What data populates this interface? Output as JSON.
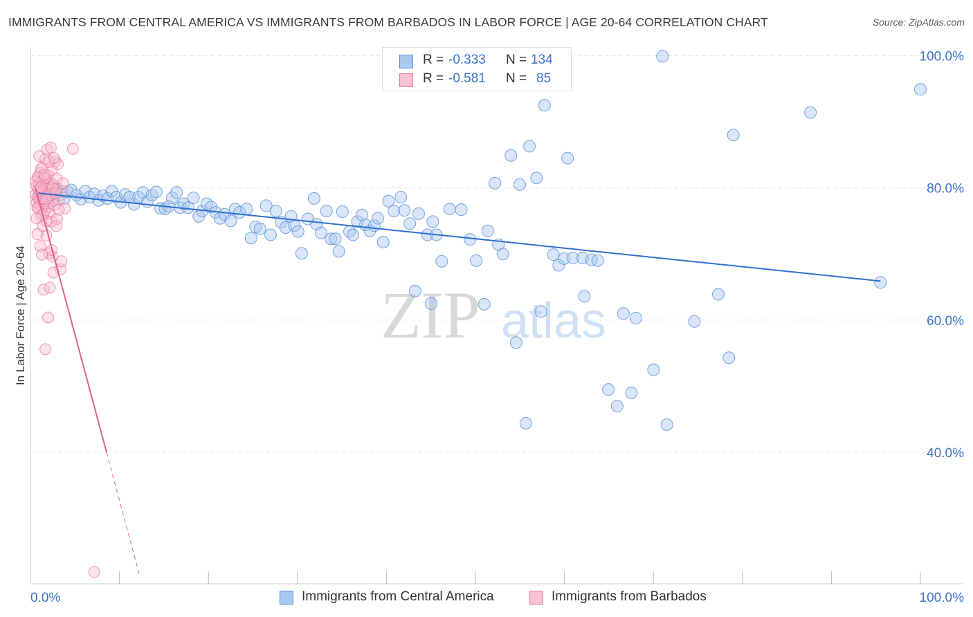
{
  "header": {
    "title": "IMMIGRANTS FROM CENTRAL AMERICA VS IMMIGRANTS FROM BARBADOS IN LABOR FORCE | AGE 20-64 CORRELATION CHART",
    "source": "Source: ZipAtlas.com"
  },
  "legend_top": {
    "rows": [
      {
        "r_label": "R =",
        "r_value": "-0.333",
        "n_label": "N =",
        "n_value": "134"
      },
      {
        "r_label": "R =",
        "r_value": "-0.581",
        "n_label": "N =",
        "n_value": "85"
      }
    ]
  },
  "legend_bottom": {
    "items": [
      {
        "label": "Immigrants from Central America"
      },
      {
        "label": "Immigrants from Barbados"
      }
    ]
  },
  "watermark": {
    "zip": "ZIP",
    "atlas": "atlas"
  },
  "colors": {
    "blue_fill": "#a8c8f0",
    "blue_stroke": "#5b8fd6",
    "blue_line": "#2f6fd0",
    "pink_fill": "#f8b8cc",
    "pink_stroke": "#e8789a",
    "pink_line": "#e0608a",
    "tick_text": "#3b73c8",
    "grid": "#e6e6e6"
  },
  "chart_data": {
    "type": "scatter",
    "title": "IMMIGRANTS FROM CENTRAL AMERICA VS IMMIGRANTS FROM BARBADOS IN LABOR FORCE | AGE 20-64 CORRELATION CHART",
    "xlabel": "",
    "ylabel": "In Labor Force | Age 20-64",
    "xlim": [
      0,
      100
    ],
    "ylim": [
      20,
      102
    ],
    "x_ticks": [
      "0.0%",
      "100.0%"
    ],
    "y_ticks": [
      {
        "value": 100,
        "label": "100.0%"
      },
      {
        "value": 80,
        "label": "80.0%"
      },
      {
        "value": 60,
        "label": "60.0%"
      },
      {
        "value": 40,
        "label": "40.0%"
      }
    ],
    "grid": true,
    "legend_position": "bottom",
    "series": [
      {
        "name": "Immigrants from Central America",
        "r": -0.333,
        "n": 134,
        "trend": {
          "x": [
            0.5,
            95.5
          ],
          "y": [
            79.2,
            65.9
          ]
        },
        "points": [
          [
            0.6,
            78.8
          ],
          [
            1.0,
            79.2
          ],
          [
            1.4,
            78.6
          ],
          [
            1.8,
            79.6
          ],
          [
            2.2,
            78.2
          ],
          [
            2.6,
            79.9
          ],
          [
            3.0,
            79.0
          ],
          [
            3.4,
            78.4
          ],
          [
            3.8,
            79.4
          ],
          [
            4.2,
            79.7
          ],
          [
            4.8,
            78.9
          ],
          [
            5.3,
            78.3
          ],
          [
            5.8,
            79.5
          ],
          [
            6.3,
            78.6
          ],
          [
            6.8,
            79.1
          ],
          [
            7.3,
            78.1
          ],
          [
            7.8,
            78.8
          ],
          [
            8.3,
            78.4
          ],
          [
            8.8,
            79.5
          ],
          [
            9.3,
            78.6
          ],
          [
            9.8,
            77.8
          ],
          [
            10.3,
            79.0
          ],
          [
            10.8,
            78.6
          ],
          [
            11.3,
            77.5
          ],
          [
            11.8,
            78.6
          ],
          [
            12.3,
            79.3
          ],
          [
            12.8,
            77.9
          ],
          [
            13.3,
            78.9
          ],
          [
            13.8,
            79.4
          ],
          [
            14.3,
            76.9
          ],
          [
            14.8,
            76.8
          ],
          [
            15.2,
            77.2
          ],
          [
            15.6,
            78.5
          ],
          [
            16.1,
            79.3
          ],
          [
            16.5,
            77.0
          ],
          [
            16.9,
            77.6
          ],
          [
            17.4,
            77.0
          ],
          [
            18.0,
            78.5
          ],
          [
            18.6,
            75.7
          ],
          [
            19.0,
            76.5
          ],
          [
            19.5,
            77.6
          ],
          [
            20.0,
            77.1
          ],
          [
            20.5,
            76.3
          ],
          [
            21.0,
            75.4
          ],
          [
            21.5,
            76.0
          ],
          [
            22.2,
            75.0
          ],
          [
            22.7,
            76.8
          ],
          [
            23.2,
            76.3
          ],
          [
            24.0,
            76.8
          ],
          [
            24.5,
            72.4
          ],
          [
            25.0,
            74.1
          ],
          [
            25.5,
            73.8
          ],
          [
            26.2,
            77.3
          ],
          [
            26.7,
            72.9
          ],
          [
            27.3,
            76.5
          ],
          [
            27.9,
            74.8
          ],
          [
            28.4,
            74.0
          ],
          [
            29.0,
            75.7
          ],
          [
            29.4,
            74.3
          ],
          [
            29.8,
            73.4
          ],
          [
            30.2,
            70.1
          ],
          [
            30.9,
            75.3
          ],
          [
            31.6,
            78.4
          ],
          [
            31.9,
            74.5
          ],
          [
            32.4,
            73.2
          ],
          [
            33.0,
            76.5
          ],
          [
            33.5,
            72.3
          ],
          [
            34.0,
            72.3
          ],
          [
            34.4,
            70.4
          ],
          [
            34.8,
            76.4
          ],
          [
            35.6,
            73.4
          ],
          [
            36.0,
            72.9
          ],
          [
            36.5,
            74.9
          ],
          [
            37.0,
            75.9
          ],
          [
            37.4,
            74.4
          ],
          [
            37.9,
            73.5
          ],
          [
            38.4,
            74.3
          ],
          [
            38.8,
            75.4
          ],
          [
            39.4,
            71.8
          ],
          [
            40.0,
            78.0
          ],
          [
            40.6,
            76.5
          ],
          [
            41.4,
            78.6
          ],
          [
            41.8,
            76.6
          ],
          [
            42.4,
            74.6
          ],
          [
            43.0,
            64.4
          ],
          [
            43.4,
            76.1
          ],
          [
            44.4,
            72.9
          ],
          [
            44.8,
            62.5
          ],
          [
            45.0,
            74.9
          ],
          [
            45.4,
            72.9
          ],
          [
            46.0,
            68.9
          ],
          [
            46.9,
            76.8
          ],
          [
            48.2,
            76.7
          ],
          [
            49.2,
            72.2
          ],
          [
            49.9,
            69.0
          ],
          [
            50.8,
            62.4
          ],
          [
            51.2,
            73.5
          ],
          [
            52.0,
            80.7
          ],
          [
            52.4,
            71.4
          ],
          [
            52.9,
            70.0
          ],
          [
            53.8,
            84.9
          ],
          [
            54.4,
            56.6
          ],
          [
            54.8,
            80.5
          ],
          [
            55.5,
            44.4
          ],
          [
            55.9,
            86.3
          ],
          [
            56.7,
            81.5
          ],
          [
            57.2,
            61.3
          ],
          [
            57.6,
            92.5
          ],
          [
            58.6,
            69.9
          ],
          [
            59.2,
            68.3
          ],
          [
            59.8,
            69.3
          ],
          [
            60.2,
            84.5
          ],
          [
            60.8,
            69.4
          ],
          [
            61.9,
            69.4
          ],
          [
            62.1,
            63.6
          ],
          [
            62.9,
            69.1
          ],
          [
            63.6,
            69.0
          ],
          [
            64.8,
            49.5
          ],
          [
            65.8,
            47.0
          ],
          [
            66.5,
            61.0
          ],
          [
            67.4,
            49.0
          ],
          [
            67.9,
            60.3
          ],
          [
            69.9,
            52.5
          ],
          [
            70.9,
            99.9
          ],
          [
            71.4,
            44.2
          ],
          [
            74.5,
            59.8
          ],
          [
            77.2,
            63.9
          ],
          [
            78.4,
            54.3
          ],
          [
            78.9,
            88.0
          ],
          [
            87.6,
            91.4
          ],
          [
            95.5,
            65.7
          ],
          [
            100.0,
            94.9
          ],
          [
            1.1,
            79.4
          ]
        ]
      },
      {
        "name": "Immigrants from Barbados",
        "r": -0.581,
        "n": 85,
        "trend": {
          "x": [
            0.2,
            8.2
          ],
          "y": [
            79.9,
            40.0
          ]
        },
        "trend_extension": {
          "x": [
            8.2,
            11.9
          ],
          "y": [
            40.0,
            21.5
          ]
        },
        "points": [
          [
            0.2,
            79.0
          ],
          [
            0.3,
            80.3
          ],
          [
            0.3,
            77.8
          ],
          [
            0.4,
            78.6
          ],
          [
            0.4,
            81.5
          ],
          [
            0.5,
            79.8
          ],
          [
            0.5,
            76.9
          ],
          [
            0.6,
            80.6
          ],
          [
            0.6,
            78.2
          ],
          [
            0.7,
            82.3
          ],
          [
            0.7,
            77.3
          ],
          [
            0.8,
            79.4
          ],
          [
            0.8,
            75.7
          ],
          [
            0.9,
            80.9
          ],
          [
            0.9,
            78.8
          ],
          [
            1.0,
            83.1
          ],
          [
            1.0,
            74.2
          ],
          [
            1.1,
            79.6
          ],
          [
            1.1,
            77.6
          ],
          [
            1.2,
            81.2
          ],
          [
            1.2,
            76.4
          ],
          [
            1.3,
            84.4
          ],
          [
            1.3,
            78.0
          ],
          [
            1.4,
            80.2
          ],
          [
            1.4,
            72.8
          ],
          [
            1.5,
            79.1
          ],
          [
            1.5,
            85.8
          ],
          [
            1.6,
            77.1
          ],
          [
            1.6,
            81.9
          ],
          [
            1.7,
            70.1
          ],
          [
            1.7,
            78.5
          ],
          [
            1.8,
            80.8
          ],
          [
            1.8,
            76.1
          ],
          [
            1.9,
            86.1
          ],
          [
            1.9,
            79.3
          ],
          [
            2.0,
            74.9
          ],
          [
            2.0,
            82.7
          ],
          [
            2.1,
            78.0
          ],
          [
            2.1,
            69.6
          ],
          [
            2.2,
            80.4
          ],
          [
            2.3,
            77.4
          ],
          [
            2.4,
            84.0
          ],
          [
            2.5,
            79.8
          ],
          [
            2.6,
            75.3
          ],
          [
            2.7,
            83.6
          ],
          [
            2.8,
            78.1
          ],
          [
            3.0,
            67.7
          ],
          [
            3.2,
            79.5
          ],
          [
            3.5,
            76.9
          ],
          [
            4.4,
            85.9
          ],
          [
            0.3,
            75.4
          ],
          [
            0.4,
            73.0
          ],
          [
            0.5,
            81.7
          ],
          [
            0.6,
            84.8
          ],
          [
            0.7,
            71.2
          ],
          [
            0.8,
            82.9
          ],
          [
            0.9,
            69.9
          ],
          [
            1.0,
            78.4
          ],
          [
            1.1,
            64.6
          ],
          [
            1.2,
            81.5
          ],
          [
            1.3,
            55.6
          ],
          [
            1.4,
            75.0
          ],
          [
            1.5,
            79.8
          ],
          [
            1.6,
            60.4
          ],
          [
            1.7,
            83.9
          ],
          [
            1.8,
            64.9
          ],
          [
            1.9,
            78.9
          ],
          [
            2.0,
            70.6
          ],
          [
            2.1,
            80.0
          ],
          [
            2.2,
            67.2
          ],
          [
            2.3,
            84.5
          ],
          [
            2.4,
            79.2
          ],
          [
            2.5,
            74.2
          ],
          [
            2.6,
            81.4
          ],
          [
            2.8,
            76.7
          ],
          [
            3.1,
            68.9
          ],
          [
            3.3,
            80.7
          ],
          [
            0.2,
            81.0
          ],
          [
            0.4,
            77.0
          ],
          [
            0.6,
            79.6
          ],
          [
            0.8,
            80.1
          ],
          [
            1.0,
            76.0
          ],
          [
            1.2,
            82.0
          ],
          [
            1.4,
            78.3
          ],
          [
            6.8,
            21.9
          ]
        ]
      }
    ]
  }
}
